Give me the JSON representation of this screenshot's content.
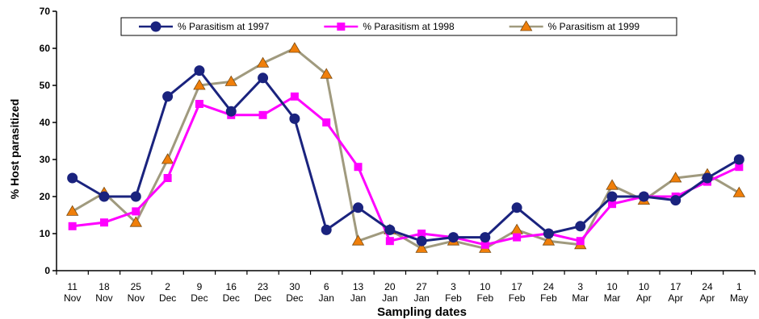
{
  "chart_data": {
    "type": "line",
    "xlabel": "Sampling dates",
    "ylabel": "% Host parasitized",
    "ylim": [
      0,
      70
    ],
    "yticks": [
      0,
      10,
      20,
      30,
      40,
      50,
      60,
      70
    ],
    "grid": false,
    "legend_position": "top",
    "categories": [
      [
        "11",
        "Nov"
      ],
      [
        "18",
        "Nov"
      ],
      [
        "25",
        "Nov"
      ],
      [
        "2",
        "Dec"
      ],
      [
        "9",
        "Dec"
      ],
      [
        "16",
        "Dec"
      ],
      [
        "23",
        "Dec"
      ],
      [
        "30",
        "Dec"
      ],
      [
        "6",
        "Jan"
      ],
      [
        "13",
        "Jan"
      ],
      [
        "20",
        "Jan"
      ],
      [
        "27",
        "Jan"
      ],
      [
        "3",
        "Feb"
      ],
      [
        "10",
        "Feb"
      ],
      [
        "17",
        "Feb"
      ],
      [
        "24",
        "Feb"
      ],
      [
        "3",
        "Mar"
      ],
      [
        "10",
        "Mar"
      ],
      [
        "10",
        "Apr"
      ],
      [
        "17",
        "Apr"
      ],
      [
        "24",
        "Apr"
      ],
      [
        "1",
        "May"
      ]
    ],
    "series": [
      {
        "name": "% Parasitism at 1997",
        "color": "#1a237e",
        "marker": "circle",
        "values": [
          25,
          20,
          20,
          47,
          54,
          43,
          52,
          41,
          11,
          17,
          11,
          8,
          9,
          9,
          17,
          10,
          12,
          20,
          20,
          19,
          25,
          30
        ]
      },
      {
        "name": "% Parasitism at 1998",
        "color": "#ff00ff",
        "marker": "square",
        "values": [
          12,
          13,
          16,
          25,
          45,
          42,
          42,
          47,
          40,
          28,
          8,
          10,
          9,
          7,
          9,
          10,
          8,
          18,
          20,
          20,
          24,
          28
        ]
      },
      {
        "name": "% Parasitism at 1999",
        "color": "#a09a7e",
        "marker": "triangle",
        "markerColor": "#f07f0a",
        "values": [
          16,
          21,
          13,
          30,
          50,
          51,
          56,
          60,
          53,
          8,
          11,
          6,
          8,
          6,
          11,
          8,
          7,
          23,
          19,
          25,
          26,
          21
        ]
      }
    ]
  }
}
